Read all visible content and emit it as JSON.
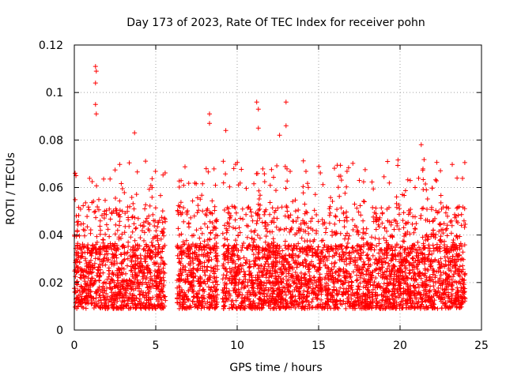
{
  "chart_data": {
    "type": "scatter",
    "title": "Day 173 of 2023, Rate Of TEC Index for receiver pohn",
    "xlabel": "GPS time / hours",
    "ylabel": "ROTI / TECUs",
    "xlim": [
      0,
      25
    ],
    "ylim": [
      0,
      0.12
    ],
    "xticks": [
      0,
      5,
      10,
      15,
      20,
      25
    ],
    "yticks": [
      0,
      0.02,
      0.04,
      0.06,
      0.08,
      0.1,
      0.12
    ],
    "xtick_labels": [
      "0",
      "5",
      "10",
      "15",
      "20",
      "25"
    ],
    "ytick_labels": [
      "0",
      "0.02",
      "0.04",
      "0.06",
      "0.08",
      "0.1",
      "0.12"
    ],
    "grid": true,
    "marker": "+",
    "color": "#ff0000",
    "data_segments_hours": [
      [
        0.0,
        5.6
      ],
      [
        6.3,
        8.8
      ],
      [
        9.1,
        24.0
      ]
    ],
    "typical_range": [
      0.005,
      0.04
    ],
    "notable_points": [
      {
        "x": 1.3,
        "y": 0.111
      },
      {
        "x": 1.35,
        "y": 0.109
      },
      {
        "x": 1.3,
        "y": 0.104
      },
      {
        "x": 1.3,
        "y": 0.095
      },
      {
        "x": 1.35,
        "y": 0.091
      },
      {
        "x": 3.7,
        "y": 0.083
      },
      {
        "x": 8.3,
        "y": 0.091
      },
      {
        "x": 8.3,
        "y": 0.087
      },
      {
        "x": 9.3,
        "y": 0.084
      },
      {
        "x": 11.2,
        "y": 0.096
      },
      {
        "x": 11.3,
        "y": 0.093
      },
      {
        "x": 11.3,
        "y": 0.085
      },
      {
        "x": 12.6,
        "y": 0.082
      },
      {
        "x": 13.0,
        "y": 0.096
      },
      {
        "x": 13.0,
        "y": 0.086
      },
      {
        "x": 21.3,
        "y": 0.078
      },
      {
        "x": 0.05,
        "y": 0.066
      },
      {
        "x": 0.1,
        "y": 0.065
      },
      {
        "x": 17.5,
        "y": 0.063
      },
      {
        "x": 23.5,
        "y": 0.064
      }
    ]
  }
}
